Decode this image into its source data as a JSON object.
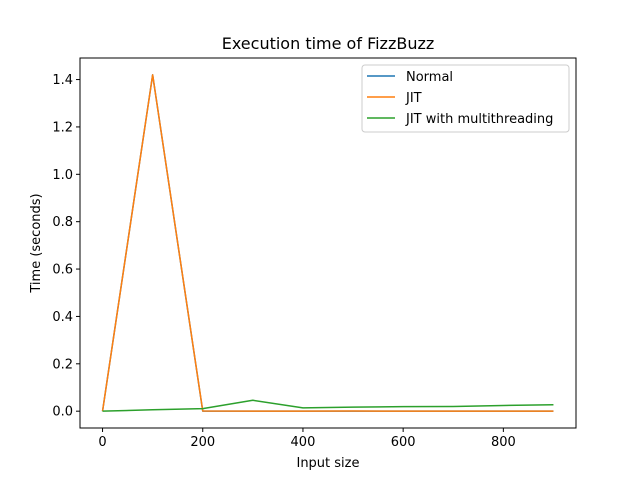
{
  "chart_data": {
    "type": "line",
    "title": "Execution time of FizzBuzz",
    "xlabel": "Input size",
    "ylabel": "Time (seconds)",
    "xlim": [
      -45,
      945
    ],
    "ylim": [
      -0.071,
      1.491
    ],
    "xticks": [
      0,
      200,
      400,
      600,
      800
    ],
    "xtick_labels": [
      "0",
      "200",
      "400",
      "600",
      "800"
    ],
    "yticks": [
      0.0,
      0.2,
      0.4,
      0.6,
      0.8,
      1.0,
      1.2,
      1.4
    ],
    "ytick_labels": [
      "0.0",
      "0.2",
      "0.4",
      "0.6",
      "0.8",
      "1.0",
      "1.2",
      "1.4"
    ],
    "grid": false,
    "legend_position": "top-right",
    "x": [
      0,
      100,
      200,
      300,
      400,
      500,
      600,
      700,
      800,
      900
    ],
    "series": [
      {
        "name": "Normal",
        "color": "#1f77b4",
        "values": [
          0.0,
          1.42,
          0.0,
          0.0,
          0.0,
          0.0,
          0.0,
          0.0,
          0.0,
          0.0
        ]
      },
      {
        "name": "JIT",
        "color": "#ff7f0e",
        "values": [
          0.0,
          1.42,
          0.001,
          0.0,
          0.0,
          0.001,
          0.0,
          0.0,
          0.0,
          0.0
        ]
      },
      {
        "name": "JIT with multithreading",
        "color": "#2ca02c",
        "values": [
          0.0,
          0.006,
          0.011,
          0.046,
          0.014,
          0.017,
          0.019,
          0.02,
          0.024,
          0.027
        ]
      }
    ]
  }
}
